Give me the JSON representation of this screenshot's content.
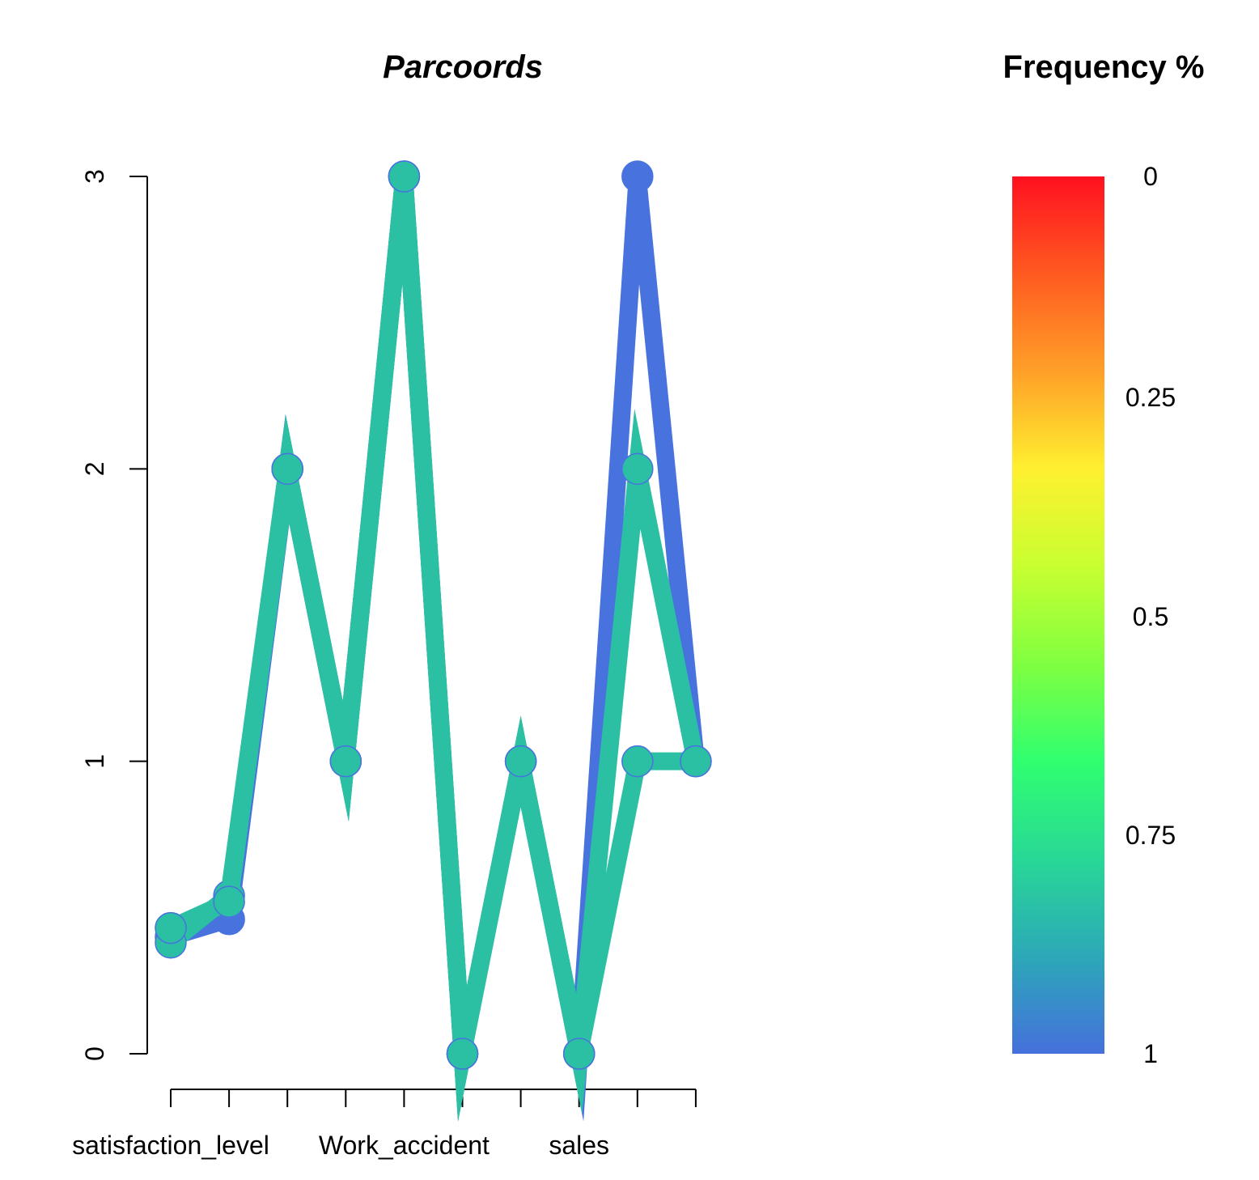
{
  "chart_data": {
    "type": "line",
    "title": "Parcoords",
    "x_labels": [
      "satisfaction_level",
      "Work_accident",
      "sales"
    ],
    "x_label_indices": [
      0,
      4,
      7
    ],
    "n_axes": 10,
    "ylim": [
      0,
      3
    ],
    "y_ticks": [
      "0",
      "1",
      "2",
      "3"
    ],
    "series": [
      {
        "color": "#4872DE",
        "values": [
          0.4,
          0.46,
          2,
          1,
          3,
          0,
          1,
          0,
          3,
          1
        ]
      },
      {
        "color": "#2BC0A3",
        "values": [
          0.38,
          0.54,
          2,
          1,
          3,
          0,
          1,
          0,
          2,
          1
        ]
      },
      {
        "color": "#2BC0A3",
        "values": [
          0.43,
          0.52,
          2,
          1,
          3,
          0,
          1,
          0,
          1,
          1
        ]
      }
    ],
    "legend": {
      "title": "Frequency %",
      "tick_labels": [
        "0",
        "0.25",
        "0.5",
        "0.75",
        "1"
      ],
      "color_stops": [
        "#FF1020",
        "#FF5A20",
        "#FFA028",
        "#FFF030",
        "#C8FF30",
        "#80FF40",
        "#30FF70",
        "#28D896",
        "#2CA8B8",
        "#4570DC"
      ]
    }
  }
}
